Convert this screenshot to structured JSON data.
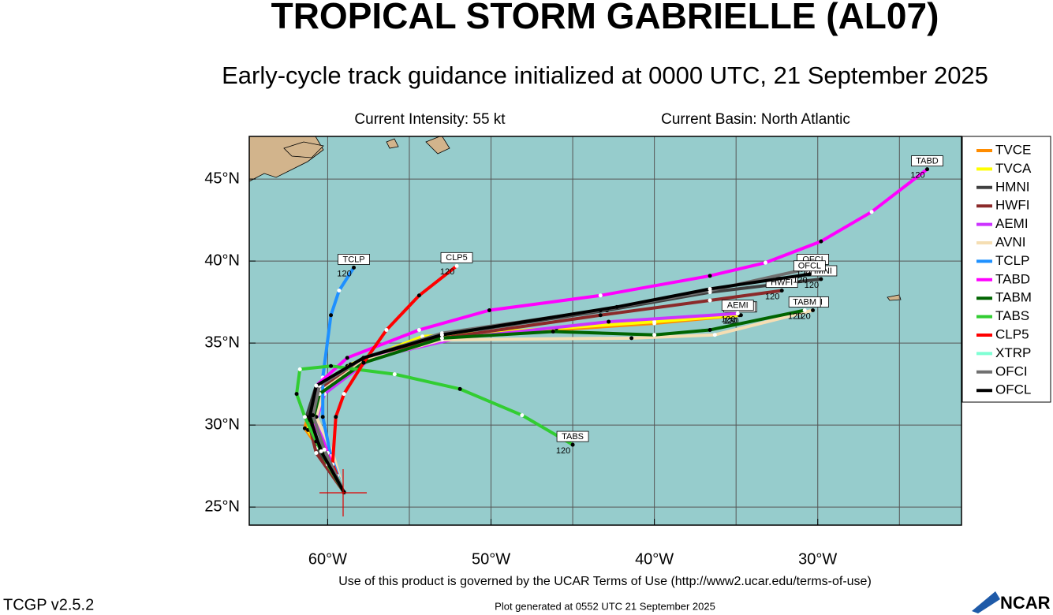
{
  "chart_data": {
    "type": "line",
    "title": "TROPICAL STORM GABRIELLE (AL07)",
    "subtitle": "Early-cycle track guidance initialized at 0000 UTC, 21 September 2025",
    "intensity": "Current Intensity: 55 kt",
    "basin": "Current Basin: North Atlantic",
    "terms": "Use of this product is governed by the UCAR Terms of Use (http://www2.ucar.edu/terms-of-use)",
    "version": "TCGP v2.5.2",
    "generated": "Plot generated at 0552 UTC   21 September 2025",
    "logo": "NCAR",
    "xlim": [
      -64.8,
      -21.2
    ],
    "ylim": [
      23.9,
      47.6
    ],
    "xticks": [
      {
        "value": -60,
        "label": "60°W"
      },
      {
        "value": -50,
        "label": "50°W"
      },
      {
        "value": -40,
        "label": "40°W"
      },
      {
        "value": -30,
        "label": "30°W"
      }
    ],
    "xgrid": [
      -55,
      -45,
      -35,
      -25
    ],
    "yticks": [
      {
        "value": 25,
        "label": "25°N"
      },
      {
        "value": 30,
        "label": "30°N"
      },
      {
        "value": 35,
        "label": "35°N"
      },
      {
        "value": 40,
        "label": "40°N"
      },
      {
        "value": 45,
        "label": "45°N"
      }
    ],
    "grid": true,
    "legend": "right",
    "series": [
      {
        "name": "TVCE",
        "color": "#ff8c00",
        "x": [
          -59,
          -60.2,
          -61.4,
          -61,
          -58.8,
          -54.4,
          -46.2,
          -40,
          -34.7
        ],
        "values": [
          25.9,
          28.1,
          29.8,
          31.4,
          33.6,
          35.3,
          35.8,
          36.2,
          36.7
        ],
        "end_label": "120"
      },
      {
        "name": "TVCA",
        "color": "#ffff00",
        "x": [
          -59,
          -60.1,
          -61.2,
          -60.9,
          -58.6,
          -54.2,
          -46,
          -40,
          -34.8
        ],
        "values": [
          25.9,
          28.0,
          29.7,
          31.5,
          33.7,
          35.4,
          35.9,
          36.3,
          36.7
        ],
        "end_label": "120"
      },
      {
        "name": "HMNI",
        "color": "#404040",
        "x": [
          -59,
          -60.7,
          -61.3,
          -60.7,
          -57.8,
          -53,
          -42.9,
          -36.6,
          -29.8
        ],
        "values": [
          25.9,
          28.6,
          30.5,
          32.4,
          34.1,
          35.5,
          37,
          38.1,
          38.9
        ],
        "end_label": "120"
      },
      {
        "name": "HWFI",
        "color": "#8b2a2a",
        "x": [
          -59,
          -60.7,
          -61.2,
          -60.5,
          -57.5,
          -53,
          -43.3,
          -36.6,
          -32.2
        ],
        "values": [
          25.9,
          28.3,
          30.3,
          32.2,
          34.1,
          35.3,
          36.7,
          37.6,
          38.2
        ],
        "end_label": "120"
      },
      {
        "name": "AEMI",
        "color": "#cc33ff",
        "x": [
          -59,
          -60,
          -60.7,
          -60.2,
          -57.3,
          -52,
          -42.8,
          -34.9
        ],
        "values": [
          25.9,
          28.3,
          30.3,
          31.9,
          34.1,
          35.3,
          36.3,
          36.8
        ],
        "end_label": "120"
      },
      {
        "name": "AVNI",
        "color": "#f5deb3",
        "x": [
          -59,
          -59.7,
          -60.7,
          -60.2,
          -57.8,
          -53,
          -41.4,
          -36.3,
          -30.3
        ],
        "values": [
          25.9,
          28.3,
          30.5,
          32.2,
          33.9,
          35.2,
          35.3,
          35.5,
          37
        ],
        "end_label": "120"
      },
      {
        "name": "TCLP",
        "color": "#1e90ff",
        "x": [
          -59,
          -59.8,
          -60.3,
          -60.3,
          -59.8,
          -59.3,
          -58.4
        ],
        "values": [
          25.9,
          28.1,
          30.5,
          32.9,
          36.7,
          38.2,
          39.6
        ],
        "end_label": "120"
      },
      {
        "name": "TABD",
        "color": "#ff00ff",
        "x": [
          -59,
          -60,
          -61,
          -60.7,
          -58.8,
          -54.4,
          -50.1,
          -43.3,
          -36.6,
          -33.2,
          -29.8,
          -26.7,
          -23.3
        ],
        "values": [
          25.9,
          28.3,
          30.5,
          32.4,
          34.1,
          35.8,
          37,
          37.9,
          39.1,
          39.9,
          41.2,
          43,
          45.6
        ],
        "end_label": "120"
      },
      {
        "name": "TABM",
        "color": "#006400",
        "x": [
          -59,
          -60.2,
          -61,
          -60.5,
          -57.8,
          -53,
          -46.2,
          -40,
          -36.6,
          -30.8
        ],
        "values": [
          25.9,
          28.1,
          29.9,
          31.9,
          33.8,
          35.3,
          35.7,
          35.5,
          35.8,
          37
        ],
        "end_label": "120"
      },
      {
        "name": "TABS",
        "color": "#32cd32",
        "x": [
          -59,
          -60,
          -60.7,
          -61.4,
          -61.9,
          -61.7,
          -59.8,
          -55.9,
          -51.9,
          -48.1,
          -45
        ],
        "values": [
          25.9,
          27.6,
          29,
          30.5,
          31.9,
          33.4,
          33.6,
          33.1,
          32.2,
          30.6,
          28.8
        ],
        "end_label": "120"
      },
      {
        "name": "CLP5",
        "color": "#ff0000",
        "x": [
          -59,
          -59.7,
          -59.5,
          -59,
          -57.8,
          -56.4,
          -54.4,
          -52.1
        ],
        "values": [
          25.9,
          27.6,
          30.5,
          31.9,
          33.8,
          35.8,
          37.9,
          39.7
        ],
        "end_label": "120"
      },
      {
        "name": "XTRP",
        "color": "#7fffd4",
        "x": [
          -59,
          -59.4
        ],
        "values": [
          25.9,
          26.9
        ]
      },
      {
        "name": "OFCI",
        "color": "#707070",
        "x": [
          -59,
          -60.2,
          -60.9,
          -60.5,
          -57.8,
          -53,
          -43.3,
          -36.6,
          -30.3
        ],
        "values": [
          25.9,
          28.5,
          30.6,
          32.4,
          34.1,
          35.6,
          37,
          38.2,
          39.6
        ],
        "end_label": "120"
      },
      {
        "name": "OFCL",
        "color": "#000000",
        "x": [
          -59,
          -60.4,
          -61.1,
          -60.7,
          -57.8,
          -53,
          -42.3,
          -36.6,
          -30.5
        ],
        "values": [
          25.9,
          28.4,
          30.5,
          32.4,
          34.1,
          35.5,
          37.2,
          38.3,
          39.2
        ],
        "end_label": "120"
      }
    ]
  }
}
